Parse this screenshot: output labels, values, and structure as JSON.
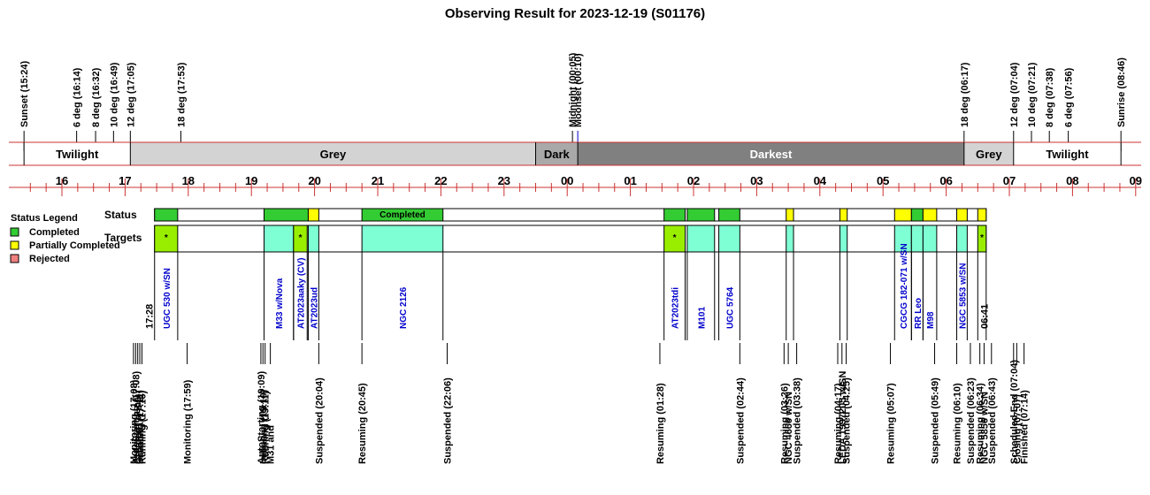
{
  "chart_data": {
    "type": "timeline",
    "title": "Observing Result for 2023-12-19 (S01176)",
    "hour_ticks": [
      {
        "h": 16,
        "label": "16"
      },
      {
        "h": 17,
        "label": "17"
      },
      {
        "h": 18,
        "label": "18"
      },
      {
        "h": 19,
        "label": "19"
      },
      {
        "h": 20,
        "label": "20"
      },
      {
        "h": 21,
        "label": "21"
      },
      {
        "h": 22,
        "label": "22"
      },
      {
        "h": 23,
        "label": "23"
      },
      {
        "h": 24,
        "label": "00"
      },
      {
        "h": 25,
        "label": "01"
      },
      {
        "h": 26,
        "label": "02"
      },
      {
        "h": 27,
        "label": "03"
      },
      {
        "h": 28,
        "label": "04"
      },
      {
        "h": 29,
        "label": "05"
      },
      {
        "h": 30,
        "label": "06"
      },
      {
        "h": 31,
        "label": "07"
      },
      {
        "h": 32,
        "label": "08"
      },
      {
        "h": 33,
        "label": "09"
      }
    ],
    "sky_events": [
      {
        "t": 15.4,
        "label": "Sunset (15:24)",
        "color": "#000000"
      },
      {
        "t": 16.233,
        "label": "6 deg (16:14)",
        "color": "#000000"
      },
      {
        "t": 16.533,
        "label": "8 deg (16:32)",
        "color": "#000000"
      },
      {
        "t": 16.817,
        "label": "10 deg (16:49)",
        "color": "#000000"
      },
      {
        "t": 17.083,
        "label": "12 deg (17:05)",
        "color": "#000000"
      },
      {
        "t": 17.883,
        "label": "18 deg (17:53)",
        "color": "#000000"
      },
      {
        "t": 24.083,
        "label": "Midnight (00:05)",
        "color": "#000000"
      },
      {
        "t": 24.167,
        "label": "Moonset (00:10)",
        "color": "#0000cc"
      },
      {
        "t": 30.283,
        "label": "18 deg (06:17)",
        "color": "#000000"
      },
      {
        "t": 31.067,
        "label": "12 deg (07:04)",
        "color": "#000000"
      },
      {
        "t": 31.35,
        "label": "10 deg (07:21)",
        "color": "#000000"
      },
      {
        "t": 31.633,
        "label": "8 deg (07:38)",
        "color": "#000000"
      },
      {
        "t": 31.933,
        "label": "6 deg (07:56)",
        "color": "#000000"
      },
      {
        "t": 32.767,
        "label": "Sunrise (08:46)",
        "color": "#000000"
      }
    ],
    "sky_bands": [
      {
        "start": 15.4,
        "end": 17.083,
        "label": "Twilight",
        "color": "#ffffff",
        "text_color": "#000000"
      },
      {
        "start": 17.083,
        "end": 23.5,
        "label": "Grey",
        "color": "#d3d3d3",
        "text_color": "#000000"
      },
      {
        "start": 23.5,
        "end": 24.167,
        "label": "Dark",
        "color": "#a9a9a9",
        "text_color": "#000000"
      },
      {
        "start": 24.167,
        "end": 30.283,
        "label": "Darkest",
        "color": "#808080",
        "text_color": "#ffffff"
      },
      {
        "start": 30.283,
        "end": 31.067,
        "label": "Grey",
        "color": "#d3d3d3",
        "text_color": "#000000"
      },
      {
        "start": 31.067,
        "end": 32.767,
        "label": "Twilight",
        "color": "#ffffff",
        "text_color": "#000000"
      }
    ],
    "legend": {
      "title": "Status Legend",
      "items": [
        {
          "label": "Completed",
          "color": "#33cc33"
        },
        {
          "label": "Partially Completed",
          "color": "#ffff00"
        },
        {
          "label": "Rejected",
          "color": "#f08080"
        }
      ]
    },
    "row_labels": {
      "status": "Status",
      "targets": "Targets"
    },
    "status_blocks": [
      {
        "start": 17.467,
        "end": 17.833,
        "status": "completed",
        "label": ""
      },
      {
        "start": 19.2,
        "end": 19.9,
        "status": "completed",
        "label": ""
      },
      {
        "start": 19.9,
        "end": 20.067,
        "status": "partial",
        "label": ""
      },
      {
        "start": 20.75,
        "end": 22.033,
        "status": "completed",
        "label": "Completed"
      },
      {
        "start": 25.533,
        "end": 25.867,
        "status": "completed",
        "label": ""
      },
      {
        "start": 25.9,
        "end": 26.333,
        "status": "completed",
        "label": ""
      },
      {
        "start": 26.4,
        "end": 26.733,
        "status": "completed",
        "label": ""
      },
      {
        "start": 27.467,
        "end": 27.583,
        "status": "partial",
        "label": ""
      },
      {
        "start": 28.317,
        "end": 28.433,
        "status": "partial",
        "label": ""
      },
      {
        "start": 29.183,
        "end": 29.45,
        "status": "partial",
        "label": ""
      },
      {
        "start": 29.45,
        "end": 29.633,
        "status": "completed",
        "label": ""
      },
      {
        "start": 29.633,
        "end": 29.85,
        "status": "partial",
        "label": ""
      },
      {
        "start": 30.167,
        "end": 30.333,
        "status": "partial",
        "label": ""
      },
      {
        "start": 30.5,
        "end": 30.633,
        "status": "partial",
        "label": ""
      }
    ],
    "target_blocks": [
      {
        "start": 17.467,
        "end": 17.833,
        "color": "#99ee00",
        "label": "UGC 530 w/SN",
        "mark": "*"
      },
      {
        "start": 19.2,
        "end": 19.667,
        "color": "#7fffd4",
        "label": "M33 w/Nova",
        "mark": ""
      },
      {
        "start": 19.667,
        "end": 19.883,
        "color": "#99ee00",
        "label": "AT2023aaky (CV)",
        "mark": "*"
      },
      {
        "start": 19.9,
        "end": 20.067,
        "color": "#7fffd4",
        "label": "AT2023ud",
        "mark": ""
      },
      {
        "start": 20.75,
        "end": 22.033,
        "color": "#7fffd4",
        "label": "NGC 2126",
        "mark": ""
      },
      {
        "start": 25.533,
        "end": 25.867,
        "color": "#99ee00",
        "label": "AT2023tdi",
        "mark": "*"
      },
      {
        "start": 25.9,
        "end": 26.333,
        "color": "#7fffd4",
        "label": "M101",
        "mark": ""
      },
      {
        "start": 26.4,
        "end": 26.733,
        "color": "#7fffd4",
        "label": "UGC 5764",
        "mark": ""
      },
      {
        "start": 27.467,
        "end": 27.583,
        "color": "#7fffd4",
        "label": "",
        "mark": ""
      },
      {
        "start": 28.317,
        "end": 28.433,
        "color": "#7fffd4",
        "label": "",
        "mark": ""
      },
      {
        "start": 29.183,
        "end": 29.45,
        "color": "#7fffd4",
        "label": "CGCG 182-071 w/SN",
        "mark": ""
      },
      {
        "start": 29.45,
        "end": 29.633,
        "color": "#7fffd4",
        "label": "RR Leo",
        "mark": ""
      },
      {
        "start": 29.633,
        "end": 29.85,
        "color": "#7fffd4",
        "label": "M98",
        "mark": ""
      },
      {
        "start": 30.167,
        "end": 30.333,
        "color": "#7fffd4",
        "label": "NGC 5853 w/SN",
        "mark": ""
      },
      {
        "start": 30.5,
        "end": 30.633,
        "color": "#99ee00",
        "label": "",
        "mark": "*"
      }
    ],
    "time_marks": [
      {
        "t": 17.467,
        "label": "17:28"
      },
      {
        "t": 30.683,
        "label": "06:41"
      }
    ],
    "status_events": [
      {
        "t": 17.133,
        "label": "Monitoring (17:08)",
        "color": "#000000"
      },
      {
        "t": 17.167,
        "label": "AutoStarting (17:08)",
        "color": "#000000"
      },
      {
        "t": 17.2,
        "label": "Created (17:09)",
        "color": "#000000"
      },
      {
        "t": 17.233,
        "label": "Initiating (17:11)",
        "color": "#000000"
      },
      {
        "t": 17.267,
        "label": "Running (17:16)",
        "color": "#000000"
      },
      {
        "t": 17.983,
        "label": "Monitoring (17:59)",
        "color": "#000000"
      },
      {
        "t": 19.15,
        "label": "AutoStarting (19:09)",
        "color": "#000000"
      },
      {
        "t": 19.183,
        "label": "Initiating (19:10)",
        "color": "#000000"
      },
      {
        "t": 19.217,
        "label": "Running (19:11)",
        "color": "#000000"
      },
      {
        "t": 19.3,
        "label": "M31 and",
        "color": "#0000cc"
      },
      {
        "t": 20.067,
        "label": "Suspended (20:04)",
        "color": "#e08a00"
      },
      {
        "t": 20.75,
        "label": "Resuming (20:45)",
        "color": "#000000"
      },
      {
        "t": 22.1,
        "label": "Suspended (22:06)",
        "color": "#e08a00"
      },
      {
        "t": 25.467,
        "label": "Resuming (01:28)",
        "color": "#000000"
      },
      {
        "t": 26.733,
        "label": "Suspended (02:44)",
        "color": "#e08a00"
      },
      {
        "t": 27.433,
        "label": "Resuming (03:26)",
        "color": "#000000"
      },
      {
        "t": 27.5,
        "label": "NGC 4666 w/SN",
        "color": "#0000cc"
      },
      {
        "t": 27.633,
        "label": "Suspended (03:38)",
        "color": "#e08a00"
      },
      {
        "t": 28.283,
        "label": "Resuming (04:17)",
        "color": "#000000"
      },
      {
        "t": 28.35,
        "label": "LEDA 1997205 w/SN",
        "color": "#0000cc"
      },
      {
        "t": 28.417,
        "label": "Suspended (04:25)",
        "color": "#e08a00"
      },
      {
        "t": 29.117,
        "label": "Resuming (05:07)",
        "color": "#000000"
      },
      {
        "t": 29.817,
        "label": "Suspended (05:49)",
        "color": "#e08a00"
      },
      {
        "t": 30.167,
        "label": "Resuming (06:10)",
        "color": "#000000"
      },
      {
        "t": 30.383,
        "label": "Suspended (06:23)",
        "color": "#e08a00"
      },
      {
        "t": 30.533,
        "label": "Resuming (06:34)",
        "color": "#000000"
      },
      {
        "t": 30.6,
        "label": "NGC 5856 w/SN",
        "color": "#0000cc"
      },
      {
        "t": 30.717,
        "label": "Suspended (06:43)",
        "color": "#e08a00"
      },
      {
        "t": 31.067,
        "label": "Scheduled End (07:04)",
        "color": "#000000"
      },
      {
        "t": 31.117,
        "label": "Closing (07:07)",
        "color": "#000000"
      },
      {
        "t": 31.233,
        "label": "Finished (07:14)",
        "color": "#000000"
      }
    ]
  }
}
